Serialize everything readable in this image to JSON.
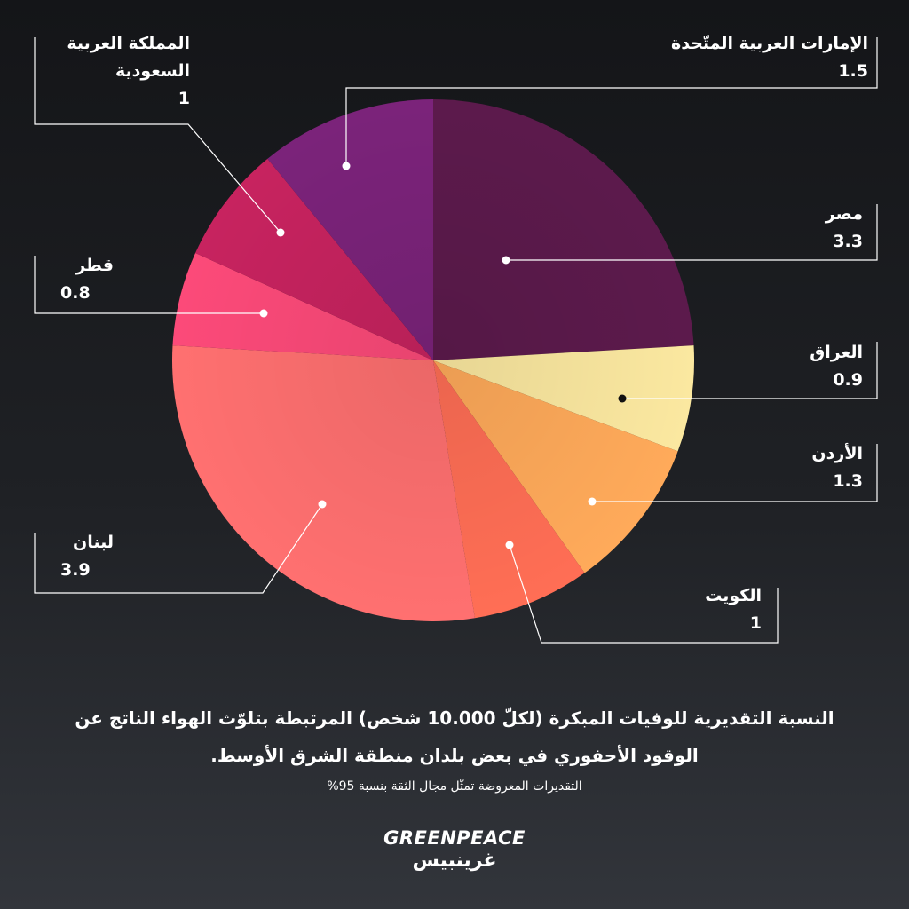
{
  "chart_data": {
    "type": "pie",
    "title": "النسبة التقديرية للوفيات المبكرة (لكلّ 10.000 شخص)  المرتبطة بتلوّث الهواء الناتج عن الوقود الأحفوري في بعض بلدان منطقة الشرق الأوسط.",
    "subtitle": "التقديرات المعروضة تمثّل مجال الثقة بنسبة 95%",
    "slices": [
      {
        "label": "مصر",
        "value": 3.3,
        "display": "3.3",
        "color": "#5c1a4c"
      },
      {
        "label": "العراق",
        "value": 0.9,
        "display": "0.9",
        "color": "#fbe8a0"
      },
      {
        "label": "الأردن",
        "value": 1.3,
        "display": "1.3",
        "color": "#ffaa5a"
      },
      {
        "label": "الكويت",
        "value": 1,
        "display": "1",
        "color": "#ff6e55"
      },
      {
        "label": "لبنان",
        "value": 3.9,
        "display": "3.9",
        "color": "#ff7070"
      },
      {
        "label": "قطر",
        "value": 0.8,
        "display": "0.8",
        "color": "#fc4a79"
      },
      {
        "label": "المملكة العربية السعودية",
        "value": 1,
        "display": "1",
        "color": "#c7235f"
      },
      {
        "label": "الإمارات العربية المتّحدة",
        "value": 1.5,
        "display": "1.5",
        "color": "#7b237a"
      }
    ],
    "start_angle_deg": 90,
    "direction": "clockwise",
    "legend": "none (callout labels)"
  },
  "caption": {
    "line1": "النسبة التقديرية للوفيات المبكرة (لكلّ 10.000 شخص)  المرتبطة بتلوّث الهواء الناتج عن",
    "line2": "الوقود الأحفوري في بعض بلدان منطقة الشرق الأوسط.",
    "note": "التقديرات المعروضة تمثّل مجال الثقة بنسبة 95%"
  },
  "labels": {
    "uae": {
      "name": "الإمارات العربية المتّحدة",
      "value": "1.5"
    },
    "egypt": {
      "name": "مصر",
      "value": "3.3"
    },
    "iraq": {
      "name": "العراق",
      "value": "0.9"
    },
    "jordan": {
      "name": "الأردن",
      "value": "1.3"
    },
    "kuwait": {
      "name": "الكويت",
      "value": "1"
    },
    "lebanon": {
      "name": "لبنان",
      "value": "3.9"
    },
    "qatar": {
      "name": "قطر",
      "value": "0.8"
    },
    "saudi": {
      "name1": "المملكة العربية",
      "name2": "السعودية",
      "value": "1"
    }
  },
  "logo": {
    "en": "GREENPEACE",
    "ar": "غرينبيس"
  },
  "colors": {
    "background": "#1d1f23",
    "text": "#ffffff",
    "leader": "#ffffff"
  }
}
